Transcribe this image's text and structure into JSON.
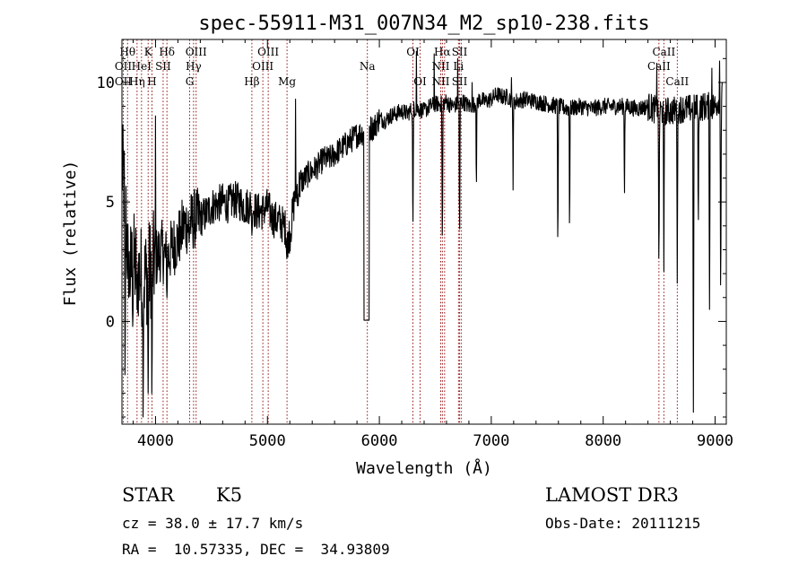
{
  "chart_data": {
    "type": "line",
    "title": "spec-55911-M31_007N34_M2_sp10-238.fits",
    "xlabel": "Wavelength (Å)",
    "ylabel": "Flux (relative)",
    "xlim": [
      3700,
      9100
    ],
    "ylim": [
      -4.3,
      11.8
    ],
    "xticks": [
      4000,
      5000,
      6000,
      7000,
      8000,
      9000
    ],
    "yticks": [
      0,
      5,
      10
    ],
    "series": [
      {
        "name": "spectrum",
        "anchors": [
          [
            3700,
            6.5
          ],
          [
            3730,
            5.0
          ],
          [
            3760,
            1.8
          ],
          [
            3800,
            2.5
          ],
          [
            3850,
            2.0
          ],
          [
            3900,
            1.8
          ],
          [
            3950,
            2.2
          ],
          [
            4000,
            2.6
          ],
          [
            4050,
            3.0
          ],
          [
            4100,
            2.6
          ],
          [
            4150,
            3.1
          ],
          [
            4200,
            3.4
          ],
          [
            4250,
            4.0
          ],
          [
            4300,
            4.1
          ],
          [
            4350,
            4.3
          ],
          [
            4400,
            4.3
          ],
          [
            4450,
            4.5
          ],
          [
            4500,
            4.8
          ],
          [
            4550,
            4.9
          ],
          [
            4600,
            5.0
          ],
          [
            4650,
            4.9
          ],
          [
            4700,
            5.1
          ],
          [
            4750,
            5.0
          ],
          [
            4800,
            4.8
          ],
          [
            4850,
            4.9
          ],
          [
            4900,
            4.6
          ],
          [
            4950,
            4.6
          ],
          [
            5000,
            4.8
          ],
          [
            5050,
            4.3
          ],
          [
            5100,
            4.2
          ],
          [
            5150,
            4.0
          ],
          [
            5200,
            3.6
          ],
          [
            5250,
            5.4
          ],
          [
            5300,
            5.8
          ],
          [
            5350,
            6.1
          ],
          [
            5400,
            6.3
          ],
          [
            5450,
            6.5
          ],
          [
            5500,
            6.8
          ],
          [
            5550,
            6.8
          ],
          [
            5600,
            7.0
          ],
          [
            5650,
            7.2
          ],
          [
            5700,
            7.4
          ],
          [
            5750,
            7.6
          ],
          [
            5800,
            7.8
          ],
          [
            5850,
            7.9
          ],
          [
            5900,
            8.1
          ],
          [
            5950,
            8.1
          ],
          [
            6000,
            8.5
          ],
          [
            6050,
            8.4
          ],
          [
            6100,
            8.6
          ],
          [
            6150,
            8.7
          ],
          [
            6200,
            8.8
          ],
          [
            6250,
            8.7
          ],
          [
            6300,
            8.9
          ],
          [
            6350,
            8.9
          ],
          [
            6400,
            8.8
          ],
          [
            6450,
            9.0
          ],
          [
            6500,
            9.1
          ],
          [
            6550,
            9.1
          ],
          [
            6600,
            9.2
          ],
          [
            6650,
            9.0
          ],
          [
            6700,
            9.1
          ],
          [
            6750,
            9.2
          ],
          [
            6800,
            9.0
          ],
          [
            6850,
            9.1
          ],
          [
            6900,
            9.3
          ],
          [
            6950,
            9.2
          ],
          [
            7000,
            9.3
          ],
          [
            7050,
            9.5
          ],
          [
            7100,
            9.4
          ],
          [
            7150,
            9.4
          ],
          [
            7200,
            9.2
          ],
          [
            7300,
            9.3
          ],
          [
            7400,
            9.2
          ],
          [
            7500,
            9.1
          ],
          [
            7600,
            9.0
          ],
          [
            7700,
            8.9
          ],
          [
            7800,
            9.0
          ],
          [
            7900,
            8.9
          ],
          [
            8000,
            9.0
          ],
          [
            8100,
            9.0
          ],
          [
            8200,
            9.0
          ],
          [
            8300,
            8.9
          ],
          [
            8400,
            9.0
          ],
          [
            8500,
            8.8
          ],
          [
            8600,
            8.8
          ],
          [
            8700,
            8.9
          ],
          [
            8800,
            8.9
          ],
          [
            8900,
            9.0
          ],
          [
            9000,
            9.0
          ],
          [
            9060,
            9.5
          ]
        ],
        "features": [
          [
            3728,
            -4.0,
            12
          ],
          [
            3760,
            1.0,
            10
          ],
          [
            3797,
            -0.5,
            10
          ],
          [
            3835,
            0.5,
            10
          ],
          [
            3889,
            -4.0,
            12
          ],
          [
            3934,
            -3.0,
            12
          ],
          [
            3968,
            -4.0,
            12
          ],
          [
            4102,
            1.0,
            10
          ],
          [
            4227,
            3.0,
            8
          ],
          [
            4300,
            3.3,
            10
          ],
          [
            4340,
            3.5,
            8
          ],
          [
            4383,
            3.9,
            8
          ],
          [
            4861,
            3.6,
            10
          ],
          [
            5172,
            2.5,
            12
          ],
          [
            5183,
            2.3,
            8
          ],
          [
            5270,
            4.6,
            8
          ],
          [
            5890,
            0.0,
            40
          ],
          [
            6300,
            3.2,
            12
          ],
          [
            6563,
            2.5,
            12
          ],
          [
            6717,
            2.5,
            10
          ],
          [
            6867,
            5.0,
            10
          ],
          [
            7195,
            5.5,
            10
          ],
          [
            7595,
            2.5,
            12
          ],
          [
            7700,
            3.0,
            10
          ],
          [
            8190,
            4.5,
            10
          ],
          [
            8498,
            1.3,
            12
          ],
          [
            8542,
            2.1,
            12
          ],
          [
            8662,
            1.6,
            12
          ],
          [
            8806,
            -3.8,
            12
          ],
          [
            8850,
            3.0,
            10
          ],
          [
            8950,
            0.5,
            12
          ],
          [
            9050,
            0.0,
            12
          ]
        ],
        "spikes": [
          [
            4000,
            8.6
          ],
          [
            5250,
            9.3
          ],
          [
            6330,
            11.3
          ],
          [
            6490,
            11.2
          ],
          [
            6700,
            11.0
          ],
          [
            6830,
            10.0
          ],
          [
            7180,
            10.2
          ],
          [
            8480,
            10.8
          ],
          [
            8970,
            10.6
          ],
          [
            9040,
            10.9
          ]
        ]
      }
    ],
    "line_markers": [
      {
        "wave": 3712,
        "labels": [
          {
            "text": "OII",
            "row": 2
          },
          {
            "text": "OII",
            "row": 3
          }
        ]
      },
      {
        "wave": 3750,
        "labels": [
          {
            "text": "Hθ",
            "row": 1
          }
        ]
      },
      {
        "wave": 3835,
        "labels": [
          {
            "text": "Hη",
            "row": 3
          }
        ]
      },
      {
        "wave": 3875,
        "labels": [
          {
            "text": "HeI",
            "row": 2
          }
        ]
      },
      {
        "wave": 3934,
        "labels": [
          {
            "text": "K",
            "row": 1
          }
        ]
      },
      {
        "wave": 3968,
        "labels": [
          {
            "text": "H",
            "row": 3
          }
        ]
      },
      {
        "wave": 4068,
        "labels": [
          {
            "text": "SII",
            "row": 2
          }
        ]
      },
      {
        "wave": 4102,
        "labels": [
          {
            "text": "Hδ",
            "row": 1
          }
        ]
      },
      {
        "wave": 4305,
        "labels": [
          {
            "text": "G",
            "row": 3
          }
        ]
      },
      {
        "wave": 4340,
        "labels": [
          {
            "text": "Hγ",
            "row": 2
          }
        ]
      },
      {
        "wave": 4363,
        "labels": [
          {
            "text": "OIII",
            "row": 1
          }
        ]
      },
      {
        "wave": 4861,
        "labels": [
          {
            "text": "Hβ",
            "row": 3
          }
        ]
      },
      {
        "wave": 4959,
        "labels": [
          {
            "text": "OIII",
            "row": 2
          }
        ]
      },
      {
        "wave": 5007,
        "labels": [
          {
            "text": "OIII",
            "row": 1
          }
        ]
      },
      {
        "wave": 5175,
        "labels": [
          {
            "text": "Mg",
            "row": 3
          }
        ]
      },
      {
        "wave": 5893,
        "labels": [
          {
            "text": "Na",
            "row": 2
          }
        ]
      },
      {
        "wave": 6300,
        "labels": [
          {
            "text": "OI",
            "row": 1
          }
        ]
      },
      {
        "wave": 6364,
        "labels": [
          {
            "text": "OI",
            "row": 3
          }
        ]
      },
      {
        "wave": 6548,
        "labels": [
          {
            "text": "NII",
            "row": 2
          },
          {
            "text": "NII",
            "row": 3
          }
        ]
      },
      {
        "wave": 6563,
        "labels": [
          {
            "text": "Hα",
            "row": 1
          }
        ]
      },
      {
        "wave": 6583,
        "labels": []
      },
      {
        "wave": 6707,
        "labels": [
          {
            "text": "Li",
            "row": 2
          }
        ]
      },
      {
        "wave": 6717,
        "labels": [
          {
            "text": "SII",
            "row": 1
          },
          {
            "text": "SII",
            "row": 3
          }
        ]
      },
      {
        "wave": 6731,
        "labels": []
      },
      {
        "wave": 8498,
        "labels": [
          {
            "text": "CaII",
            "row": 2
          }
        ]
      },
      {
        "wave": 8542,
        "labels": [
          {
            "text": "CaII",
            "row": 1
          }
        ]
      },
      {
        "wave": 8662,
        "labels": [
          {
            "text": "CaII",
            "row": 3
          }
        ]
      }
    ],
    "colors": {
      "spectrum": "#000000",
      "markers": "#8b0000",
      "frame": "#000000"
    }
  },
  "info": {
    "object_class": "STAR",
    "subclass": "K5",
    "survey": "LAMOST DR3",
    "redshift": "cz = 38.0 ± 17.7 km/s",
    "obs_date": "Obs-Date: 20111215",
    "coords": "RA =  10.57335, DEC =  34.93809"
  }
}
